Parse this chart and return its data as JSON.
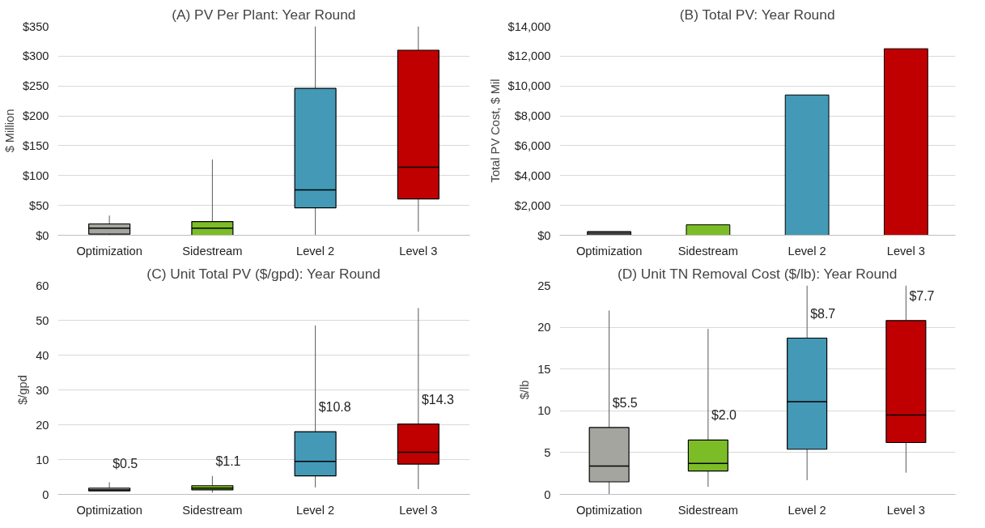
{
  "chart_data": [
    {
      "type": "box",
      "title": "(A) PV Per Plant: Year Round",
      "ylabel": "$ Million",
      "categories": [
        "Optimization",
        "Sidestream",
        "Level 2",
        "Level 3"
      ],
      "colors": [
        "#a5a59f",
        "#7cbd27",
        "#4399b6",
        "#c00000"
      ],
      "boxes": [
        {
          "low": 0,
          "q1": 2,
          "median": 12,
          "q3": 19,
          "high": 33
        },
        {
          "low": 0,
          "q1": 0,
          "median": 12,
          "q3": 23,
          "high": 127
        },
        {
          "low": 0,
          "q1": 46,
          "median": 76,
          "q3": 246,
          "high": 350
        },
        {
          "low": 6,
          "q1": 61,
          "median": 114,
          "q3": 310,
          "high": 350
        }
      ],
      "ylim": [
        0,
        350
      ],
      "yticks": [
        {
          "value": 0,
          "label": "$0"
        },
        {
          "value": 50,
          "label": "$50"
        },
        {
          "value": 100,
          "label": "$100"
        },
        {
          "value": 150,
          "label": "$150"
        },
        {
          "value": 200,
          "label": "$200"
        },
        {
          "value": 250,
          "label": "$250"
        },
        {
          "value": 300,
          "label": "$300"
        },
        {
          "value": 350,
          "label": "$350"
        }
      ],
      "grid": "y"
    },
    {
      "type": "bar",
      "title": "(B) Total PV: Year Round",
      "ylabel": "Total PV Cost, $ Mil",
      "categories": [
        "Optimization",
        "Sidestream",
        "Level 2",
        "Level 3"
      ],
      "colors": [
        "#3f3f3f",
        "#7cbd27",
        "#4399b6",
        "#c00000"
      ],
      "values": [
        250,
        700,
        9400,
        12500
      ],
      "ylim": [
        0,
        14000
      ],
      "yticks": [
        {
          "value": 0,
          "label": "$0"
        },
        {
          "value": 2000,
          "label": "$2,000"
        },
        {
          "value": 4000,
          "label": "$4,000"
        },
        {
          "value": 6000,
          "label": "$6,000"
        },
        {
          "value": 8000,
          "label": "$8,000"
        },
        {
          "value": 10000,
          "label": "$10,000"
        },
        {
          "value": 12000,
          "label": "$12,000"
        },
        {
          "value": 14000,
          "label": "$14,000"
        }
      ],
      "grid": "y"
    },
    {
      "type": "box",
      "title": "(C) Unit Total PV ($/gpd): Year Round",
      "ylabel": "$/gpd",
      "categories": [
        "Optimization",
        "Sidestream",
        "Level 2",
        "Level 3"
      ],
      "colors": [
        "#a5a59f",
        "#7cbd27",
        "#4399b6",
        "#c00000"
      ],
      "boxes": [
        {
          "low": 1,
          "q1": 1,
          "median": 1.3,
          "q3": 1.8,
          "high": 3.5
        },
        {
          "low": 0.5,
          "q1": 1.3,
          "median": 1.8,
          "q3": 2.5,
          "high": 5.3
        },
        {
          "low": 2,
          "q1": 5.3,
          "median": 9.5,
          "q3": 18,
          "high": 48.5
        },
        {
          "low": 1.5,
          "q1": 8.7,
          "median": 12.1,
          "q3": 20.2,
          "high": 53.5
        }
      ],
      "annotations": [
        "$0.5",
        "$1.1",
        "$10.8",
        "$14.3"
      ],
      "ylim": [
        0,
        60
      ],
      "yticks": [
        0,
        10,
        20,
        30,
        40,
        50,
        60
      ],
      "grid": "y"
    },
    {
      "type": "box",
      "title": "(D) Unit TN Removal Cost ($/lb): Year Round",
      "ylabel": "$/lb",
      "categories": [
        "Optimization",
        "Sidestream",
        "Level 2",
        "Level 3"
      ],
      "colors": [
        "#a5a59f",
        "#7cbd27",
        "#4399b6",
        "#c00000"
      ],
      "boxes": [
        {
          "low": 0,
          "q1": 1.5,
          "median": 3.4,
          "q3": 8,
          "high": 22
        },
        {
          "low": 0.9,
          "q1": 2.8,
          "median": 3.7,
          "q3": 6.5,
          "high": 19.8
        },
        {
          "low": 1.7,
          "q1": 5.4,
          "median": 11.1,
          "q3": 18.7,
          "high": 25
        },
        {
          "low": 2.6,
          "q1": 6.2,
          "median": 9.5,
          "q3": 20.8,
          "high": 25
        }
      ],
      "annotations": [
        "$5.5",
        "$2.0",
        "$8.7",
        "$7.7"
      ],
      "ylim": [
        0,
        25
      ],
      "yticks": [
        0,
        5,
        10,
        15,
        20,
        25
      ],
      "grid": "y"
    }
  ]
}
